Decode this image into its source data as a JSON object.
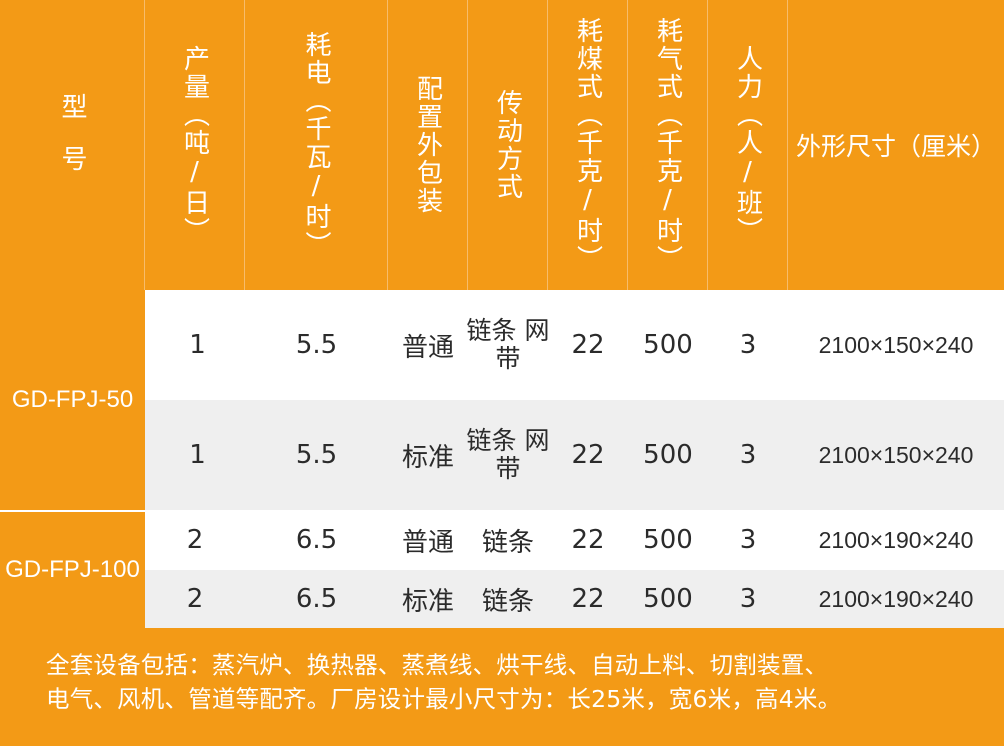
{
  "headers": {
    "model": "型号",
    "output": "产量（吨/日）",
    "power": "耗电（千瓦/时）",
    "config": "配置外包装",
    "drive": "传动方式",
    "coal": "耗煤式（千克/时）",
    "gas": "耗气式（千克/时）",
    "labor": "人力（人/班）",
    "size": "外形尺寸（厘米）"
  },
  "groups": [
    {
      "model": "GD-FPJ-50"
    },
    {
      "model": "GD-FPJ-100"
    }
  ],
  "rows": [
    {
      "output": "1",
      "power": "5.5",
      "config": "普通",
      "drive": "链条 网带",
      "coal": "22",
      "gas": "500",
      "labor": "3",
      "size": "2100×150×240"
    },
    {
      "output": "1",
      "power": "5.5",
      "config": "标准",
      "drive": "链条 网带",
      "coal": "22",
      "gas": "500",
      "labor": "3",
      "size": "2100×150×240"
    },
    {
      "output": "2",
      "power": "6.5",
      "config": "普通",
      "drive": "链条",
      "coal": "22",
      "gas": "500",
      "labor": "3",
      "size": "2100×190×240"
    },
    {
      "output": "2",
      "power": "6.5",
      "config": "标准",
      "drive": "链条",
      "coal": "22",
      "gas": "500",
      "labor": "3",
      "size": "2100×190×240"
    }
  ],
  "footer": {
    "line1": "全套设备包括：蒸汽炉、换热器、蒸煮线、烘干线、自动上料、切割装置、",
    "line2": "电气、风机、管道等配齐。厂房设计最小尺寸为：长25米，宽6米，高4米。"
  },
  "colors": {
    "accent": "#F39A16",
    "row_white": "#FFFFFF",
    "row_gray": "#EFEFEF",
    "text": "#2B2B2B"
  }
}
